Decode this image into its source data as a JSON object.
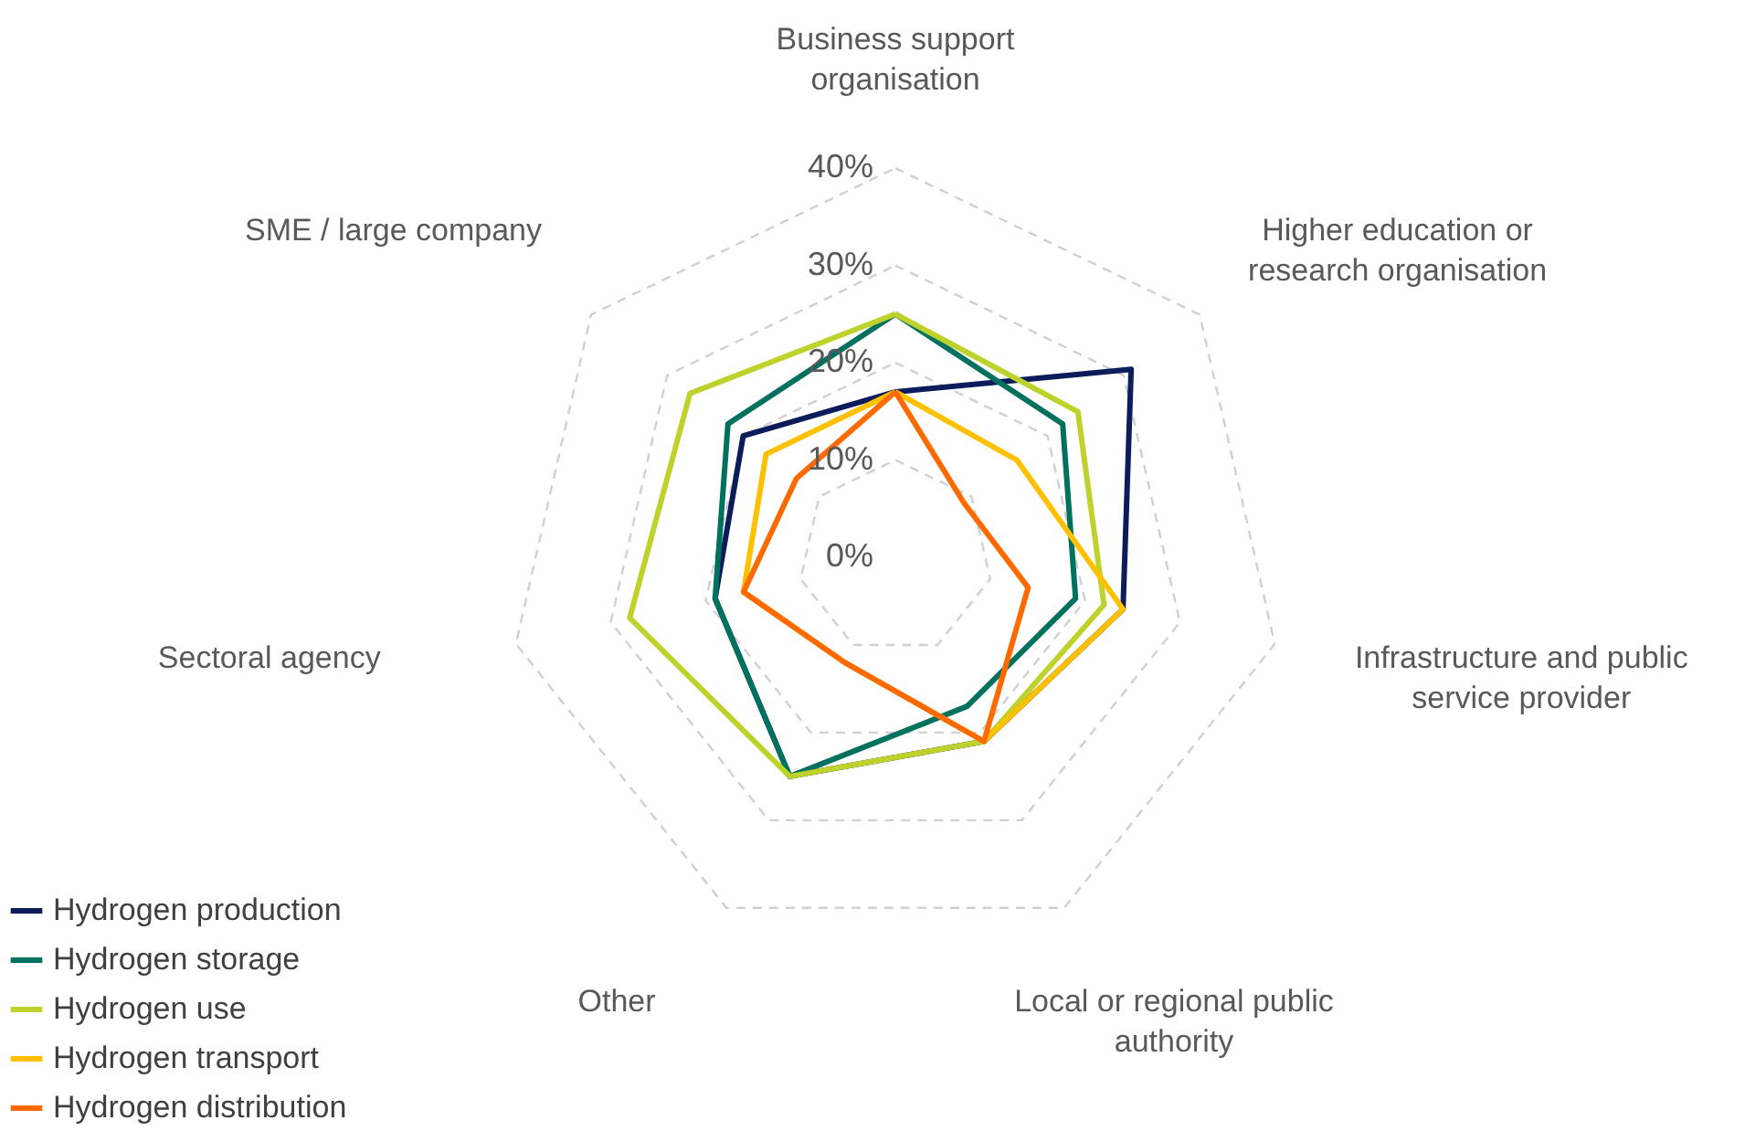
{
  "chart_data": {
    "type": "radar",
    "categories": [
      "Business support organisation",
      "Higher education or research organisation",
      "Infrastructure and public service provider",
      "Local or regional public authority",
      "Other",
      "Sectoral agency",
      "SME / large company"
    ],
    "series": [
      {
        "name": "Hydrogen production",
        "color": "#0c1c5b",
        "values": [
          17,
          31,
          24,
          21,
          25,
          19,
          20
        ]
      },
      {
        "name": "Hydrogen storage",
        "color": "#00705f",
        "values": [
          25,
          22,
          19,
          17,
          25,
          19,
          22
        ]
      },
      {
        "name": "Hydrogen use",
        "color": "#bfd22b",
        "values": [
          25,
          24,
          22,
          21,
          25,
          28,
          27
        ]
      },
      {
        "name": "Hydrogen transport",
        "color": "#ffc000",
        "values": [
          17,
          16,
          24,
          21,
          12,
          16,
          17
        ]
      },
      {
        "name": "Hydrogen distribution",
        "color": "#ff6a00",
        "values": [
          17,
          9,
          14,
          21,
          12,
          16,
          13
        ]
      }
    ],
    "ylim": [
      0,
      40
    ],
    "yticks": [
      {
        "value": 0,
        "label": "0%"
      },
      {
        "value": 10,
        "label": "10%"
      },
      {
        "value": 20,
        "label": "20%"
      },
      {
        "value": 30,
        "label": "30%"
      },
      {
        "value": 40,
        "label": "40%"
      }
    ],
    "grid": true,
    "legend": "bottom left"
  }
}
